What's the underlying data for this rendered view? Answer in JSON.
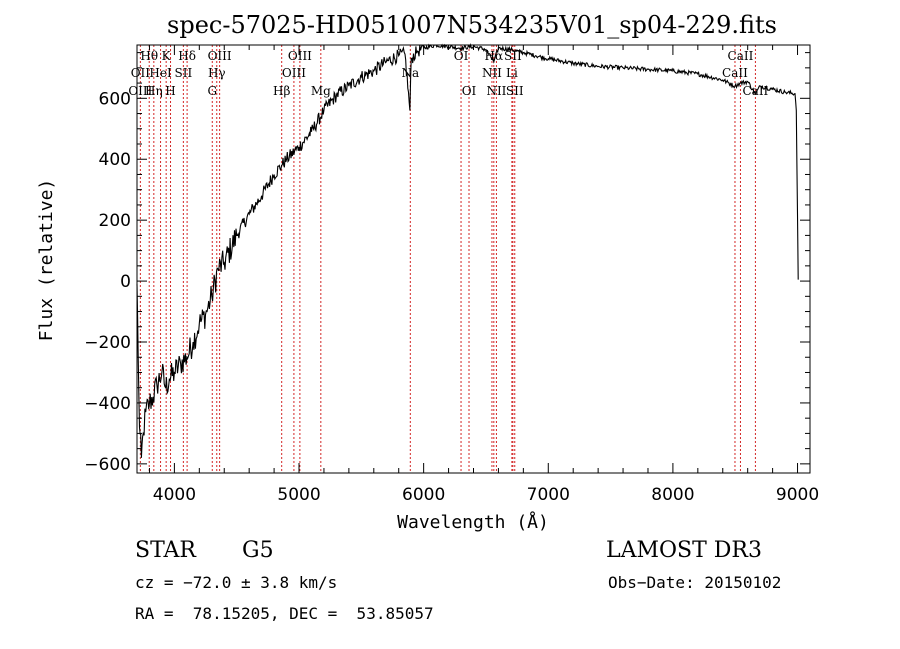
{
  "chart_data": {
    "type": "line",
    "title": "spec-57025-HD051007N534235V01_sp04-229.fits",
    "xlabel": "Wavelength (Å)",
    "ylabel": "Flux (relative)",
    "xlim": [
      3700,
      9100
    ],
    "ylim": [
      -630,
      775
    ],
    "x_ticks": [
      4000,
      5000,
      6000,
      7000,
      8000,
      9000
    ],
    "y_ticks": [
      -600,
      -400,
      -200,
      0,
      200,
      400,
      600
    ],
    "grid": false,
    "series": [
      {
        "name": "flux",
        "x": [
          3700,
          3710,
          3720,
          3735,
          3750,
          3770,
          3800,
          3830,
          3860,
          3900,
          3930,
          3960,
          4000,
          4050,
          4100,
          4150,
          4200,
          4250,
          4300,
          4350,
          4400,
          4500,
          4600,
          4700,
          4800,
          4860,
          4900,
          5000,
          5100,
          5200,
          5300,
          5400,
          5500,
          5600,
          5700,
          5800,
          5850,
          5890,
          5900,
          5950,
          6000,
          6100,
          6200,
          6300,
          6400,
          6500,
          6563,
          6600,
          6700,
          6800,
          6900,
          7000,
          7200,
          7400,
          7600,
          7800,
          8000,
          8200,
          8400,
          8498,
          8542,
          8600,
          8662,
          8700,
          8800,
          8900,
          8980,
          8990,
          9000,
          9005
        ],
        "y": [
          -10,
          -250,
          -480,
          -580,
          -500,
          -430,
          -400,
          -380,
          -340,
          -300,
          -350,
          -320,
          -300,
          -270,
          -250,
          -200,
          -140,
          -110,
          -50,
          40,
          60,
          150,
          220,
          280,
          350,
          380,
          400,
          440,
          490,
          560,
          610,
          640,
          670,
          690,
          720,
          740,
          745,
          560,
          730,
          755,
          765,
          775,
          770,
          765,
          770,
          760,
          720,
          765,
          760,
          750,
          740,
          730,
          715,
          705,
          700,
          695,
          690,
          680,
          660,
          640,
          650,
          655,
          615,
          640,
          630,
          620,
          615,
          560,
          220,
          5
        ]
      }
    ],
    "spectral_lines": [
      {
        "name": "Hθ",
        "wavelength": 3798,
        "row": 1
      },
      {
        "name": "OII",
        "wavelength": 3727,
        "row": 2
      },
      {
        "name": "OIII",
        "wavelength": 3727,
        "row": 3
      },
      {
        "name": "Hη",
        "wavelength": 3835,
        "row": 3
      },
      {
        "name": "K",
        "wavelength": 3934,
        "row": 1
      },
      {
        "name": "HeI",
        "wavelength": 3889,
        "row": 2
      },
      {
        "name": "H",
        "wavelength": 3969,
        "row": 3
      },
      {
        "name": "Hδ",
        "wavelength": 4102,
        "row": 1
      },
      {
        "name": "SII",
        "wavelength": 4072,
        "row": 2
      },
      {
        "name": "OIII",
        "wavelength": 4363,
        "row": 1
      },
      {
        "name": "Hγ",
        "wavelength": 4340,
        "row": 2
      },
      {
        "name": "G",
        "wavelength": 4304,
        "row": 3
      },
      {
        "name": "OIII",
        "wavelength": 5007,
        "row": 1
      },
      {
        "name": "OIII",
        "wavelength": 4959,
        "row": 2
      },
      {
        "name": "Hβ",
        "wavelength": 4861,
        "row": 3
      },
      {
        "name": "Mg",
        "wavelength": 5175,
        "row": 3
      },
      {
        "name": "Na",
        "wavelength": 5893,
        "row": 2
      },
      {
        "name": "OI",
        "wavelength": 6300,
        "row": 1
      },
      {
        "name": "OI",
        "wavelength": 6364,
        "row": 3
      },
      {
        "name": "Hα",
        "wavelength": 6563,
        "row": 1
      },
      {
        "name": "SII",
        "wavelength": 6716,
        "row": 1
      },
      {
        "name": "NII",
        "wavelength": 6548,
        "row": 2
      },
      {
        "name": "Li",
        "wavelength": 6708,
        "row": 2
      },
      {
        "name": "NII",
        "wavelength": 6584,
        "row": 3
      },
      {
        "name": "SII",
        "wavelength": 6731,
        "row": 3
      },
      {
        "name": "CaII",
        "wavelength": 8542,
        "row": 1
      },
      {
        "name": "CaII",
        "wavelength": 8498,
        "row": 2
      },
      {
        "name": "CaII",
        "wavelength": 8662,
        "row": 3
      }
    ],
    "line_color": "#000000",
    "marker_color": "#cc0000"
  },
  "info": {
    "object_type": "STAR",
    "subclass": "G5",
    "survey": "LAMOST DR3",
    "redshift": "cz = −72.0 ± 3.8 km/s",
    "obs_date": "Obs−Date: 20150102",
    "coords": "RA =  78.15205, DEC =  53.85057"
  }
}
